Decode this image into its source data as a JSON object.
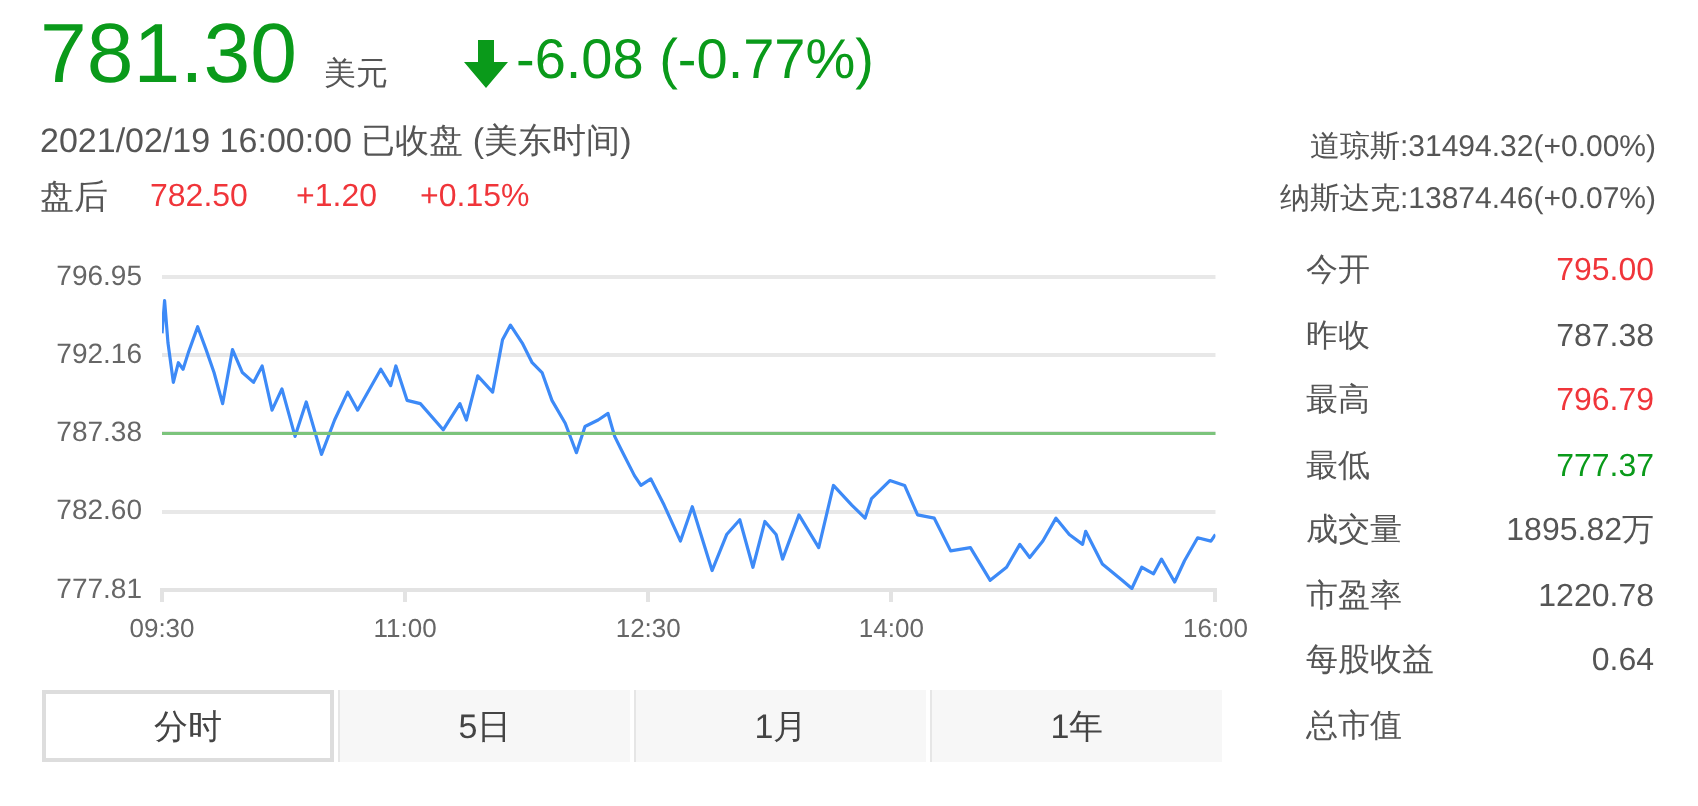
{
  "chart_data": {
    "type": "line",
    "title": "781.30",
    "subtitle": "2021/02/19 16:00:00  已收盘  (美东时间)",
    "annotations": [
      "美元",
      "-6.08 (-0.77%)",
      "盘后",
      "782.50",
      "+1.20",
      "+0.15%",
      "道琼斯:31494.32(+0.00%)",
      "纳斯达克:13874.46(+0.07%)",
      "今开",
      "795.00",
      "昨收",
      "787.38",
      "最高",
      "796.79",
      "最低",
      "777.37",
      "成交量",
      "1895.82万",
      "市盈率",
      "1220.78",
      "每股收益",
      "0.64",
      "总市值",
      "分时",
      "5日",
      "1月",
      "1年"
    ],
    "x": [
      9.5,
      9.516,
      9.537,
      9.57,
      9.601,
      9.63,
      9.662,
      9.72,
      9.772,
      9.821,
      9.874,
      9.935,
      9.996,
      10.065,
      10.118,
      10.179,
      10.24,
      10.321,
      10.39,
      10.484,
      10.565,
      10.646,
      10.707,
      10.85,
      10.911,
      10.943,
      11.012,
      11.094,
      11.235,
      11.338,
      11.378,
      11.448,
      11.54,
      11.601,
      11.65,
      11.723,
      11.784,
      11.845,
      11.906,
      11.988,
      12.057,
      12.11,
      12.191,
      12.252,
      12.293,
      12.333,
      12.415,
      12.455,
      12.516,
      12.598,
      12.699,
      12.772,
      12.894,
      12.984,
      13.065,
      13.146,
      13.22,
      13.289,
      13.329,
      13.43,
      13.552,
      13.643,
      13.756,
      13.838,
      13.878,
      13.991,
      14.082,
      14.162,
      14.265,
      14.366,
      14.488,
      14.61,
      14.711,
      14.793,
      14.854,
      14.935,
      15.016,
      15.098,
      15.18,
      15.199,
      15.302,
      15.424,
      15.484,
      15.545,
      15.618,
      15.667,
      15.748,
      15.809,
      15.89,
      15.972,
      16.0
    ],
    "series": [
      {
        "color": "#3d8af7",
        "values": [
          793.5,
          795.5,
          792.9,
          790.5,
          791.7,
          791.3,
          792.3,
          793.9,
          792.5,
          791.1,
          789.2,
          792.5,
          791.1,
          790.5,
          791.5,
          788.8,
          790.1,
          787.2,
          789.3,
          786.1,
          788.2,
          789.9,
          788.8,
          791.3,
          790.3,
          791.5,
          789.4,
          789.2,
          787.6,
          789.2,
          788.2,
          790.9,
          789.9,
          793.1,
          794.0,
          792.9,
          791.7,
          791.1,
          789.4,
          788.0,
          786.2,
          787.8,
          788.2,
          788.6,
          787.2,
          786.4,
          784.8,
          784.2,
          784.6,
          783.0,
          780.8,
          782.9,
          779.0,
          781.2,
          782.1,
          779.2,
          782.0,
          781.2,
          779.7,
          782.4,
          780.4,
          784.2,
          783.0,
          782.2,
          783.4,
          784.5,
          784.2,
          782.4,
          782.2,
          780.2,
          780.4,
          778.4,
          779.2,
          780.6,
          779.8,
          780.8,
          782.2,
          781.2,
          780.6,
          781.4,
          779.4,
          778.4,
          777.9,
          779.2,
          778.8,
          779.7,
          778.3,
          779.6,
          781.0,
          780.8,
          781.2
        ]
      }
    ],
    "xlim": [
      9.5,
      16
    ],
    "xticks": [
      {
        "value": 9.5,
        "label": "09:30"
      },
      {
        "value": 11,
        "label": "11:00"
      },
      {
        "value": 12.5,
        "label": "12:30"
      },
      {
        "value": 14,
        "label": "14:00"
      },
      {
        "value": 16,
        "label": "16:00"
      }
    ],
    "ylim": [
      777.81,
      796.95
    ],
    "yticks": [
      777.81,
      {
        "value": 782.6,
        "label": "782.60"
      },
      787.38,
      792.16,
      796.95
    ],
    "ref_lines": [
      {
        "axis": "y",
        "value": 787.38,
        "color": "#7cc47c"
      }
    ],
    "grid": "y",
    "legend": false,
    "marker": "none",
    "line_style": "solid"
  }
}
